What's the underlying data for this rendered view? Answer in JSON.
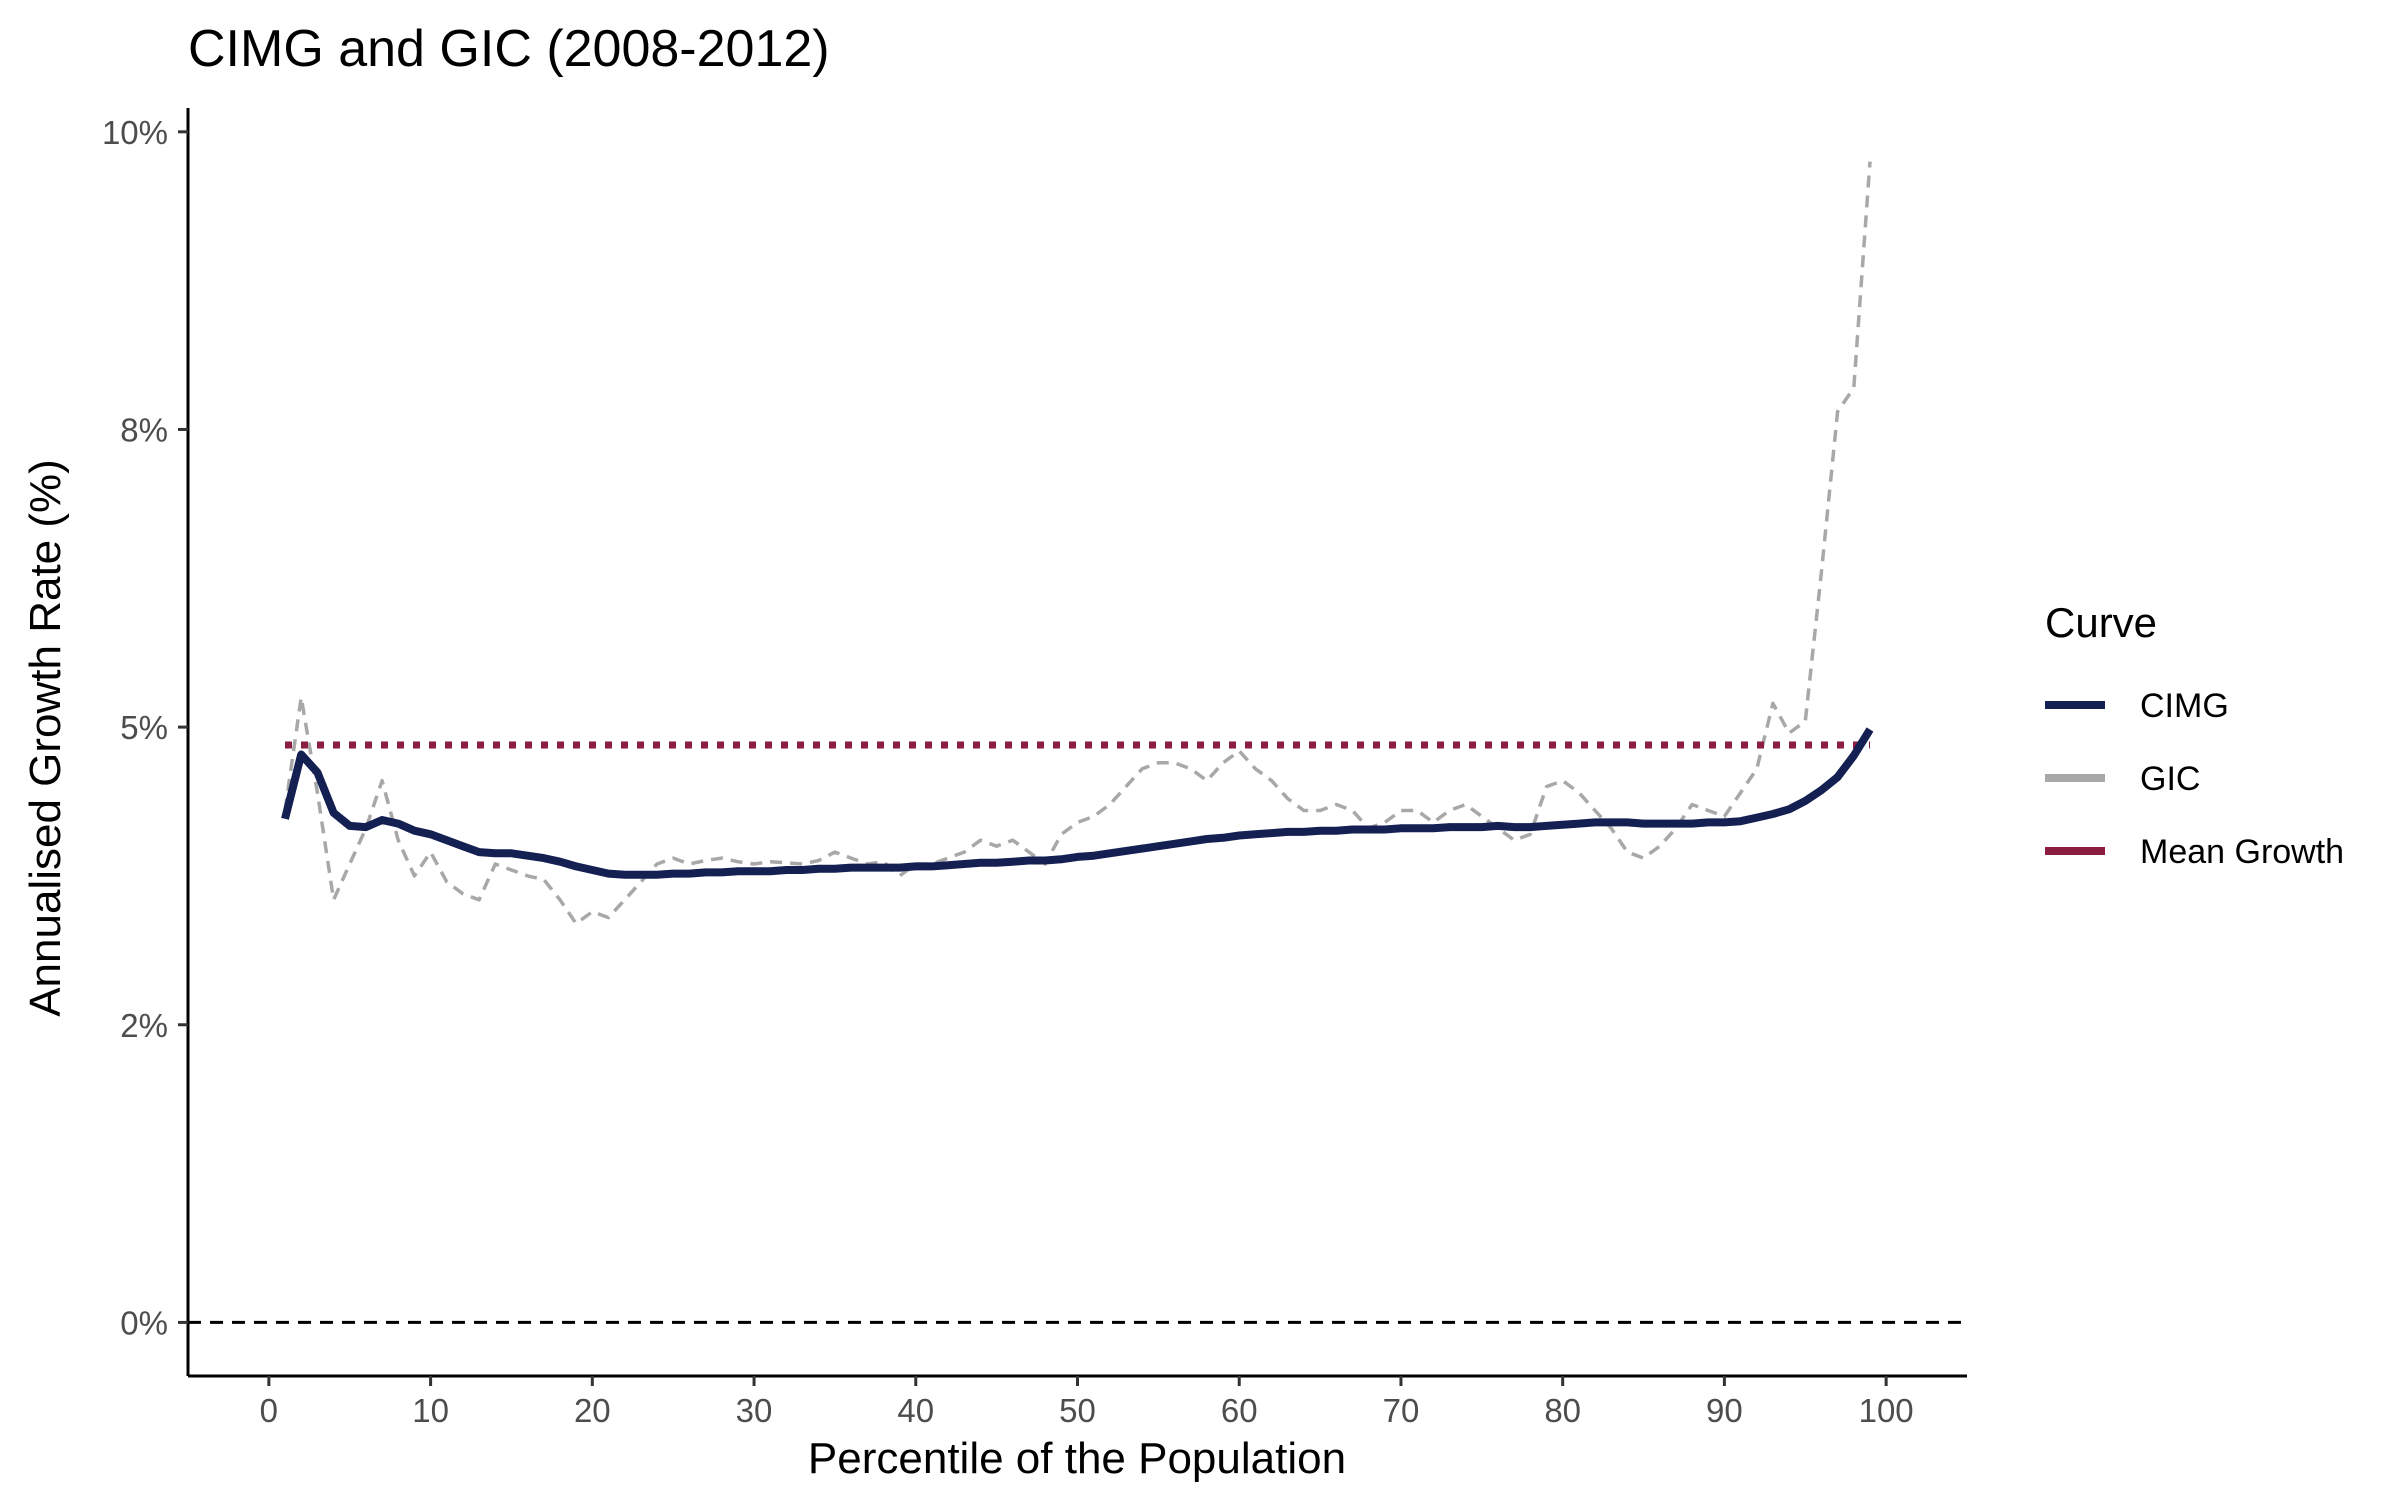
{
  "chart_data": {
    "type": "line",
    "title": "CIMG and GIC (2008-2012)",
    "xlabel": "Percentile of the Population",
    "ylabel": "Annualised Growth Rate (%)",
    "xlim": [
      -5,
      105
    ],
    "ylim": [
      -0.45,
      10.2
    ],
    "x_ticks": [
      0,
      10,
      20,
      30,
      40,
      50,
      60,
      70,
      80,
      90,
      100
    ],
    "x_tick_labels": [
      "0",
      "10",
      "20",
      "30",
      "40",
      "50",
      "60",
      "70",
      "80",
      "90",
      "100"
    ],
    "y_ticks": [
      0,
      2.5,
      5,
      7.5,
      10
    ],
    "y_tick_labels": [
      "0%",
      "2%",
      "5%",
      "8%",
      "10%"
    ],
    "grid": false,
    "legend": {
      "title": "Curve",
      "placement": "right",
      "entries": [
        "CIMG",
        "GIC",
        "Mean Growth"
      ]
    },
    "reference_line": {
      "y": 0,
      "style": "dashed",
      "color": "#000000"
    },
    "series": [
      {
        "name": "CIMG",
        "color": "#141f52",
        "style": "solid",
        "x": [
          1,
          2,
          3,
          4,
          5,
          6,
          7,
          8,
          9,
          10,
          11,
          12,
          13,
          14,
          15,
          16,
          17,
          18,
          19,
          20,
          21,
          22,
          23,
          24,
          25,
          26,
          27,
          28,
          29,
          30,
          31,
          32,
          33,
          34,
          35,
          36,
          37,
          38,
          39,
          40,
          41,
          42,
          43,
          44,
          45,
          46,
          47,
          48,
          49,
          50,
          51,
          52,
          53,
          54,
          55,
          56,
          57,
          58,
          59,
          60,
          61,
          62,
          63,
          64,
          65,
          66,
          67,
          68,
          69,
          70,
          71,
          72,
          73,
          74,
          75,
          76,
          77,
          78,
          79,
          80,
          81,
          82,
          83,
          84,
          85,
          86,
          87,
          88,
          89,
          90,
          91,
          92,
          93,
          94,
          95,
          96,
          97,
          98,
          99
        ],
        "y": [
          4.23,
          4.77,
          4.62,
          4.28,
          4.17,
          4.16,
          4.22,
          4.19,
          4.13,
          4.1,
          4.05,
          4.0,
          3.95,
          3.94,
          3.94,
          3.92,
          3.9,
          3.87,
          3.83,
          3.8,
          3.77,
          3.76,
          3.76,
          3.76,
          3.77,
          3.77,
          3.78,
          3.78,
          3.79,
          3.79,
          3.79,
          3.8,
          3.8,
          3.81,
          3.81,
          3.82,
          3.82,
          3.82,
          3.82,
          3.83,
          3.83,
          3.84,
          3.85,
          3.86,
          3.86,
          3.87,
          3.88,
          3.88,
          3.89,
          3.91,
          3.92,
          3.94,
          3.96,
          3.98,
          4.0,
          4.02,
          4.04,
          4.06,
          4.07,
          4.09,
          4.1,
          4.11,
          4.12,
          4.12,
          4.13,
          4.13,
          4.14,
          4.14,
          4.14,
          4.15,
          4.15,
          4.15,
          4.16,
          4.16,
          4.16,
          4.17,
          4.16,
          4.16,
          4.17,
          4.18,
          4.19,
          4.2,
          4.2,
          4.2,
          4.19,
          4.19,
          4.19,
          4.19,
          4.2,
          4.2,
          4.21,
          4.24,
          4.27,
          4.31,
          4.38,
          4.47,
          4.58,
          4.76,
          4.98
        ]
      },
      {
        "name": "GIC",
        "color": "#a8a8a8",
        "style": "dashed",
        "x": [
          1,
          2,
          3,
          4,
          5,
          6,
          7,
          8,
          9,
          10,
          11,
          12,
          13,
          14,
          15,
          16,
          17,
          18,
          19,
          20,
          21,
          22,
          23,
          24,
          25,
          26,
          27,
          28,
          29,
          30,
          31,
          32,
          33,
          34,
          35,
          36,
          37,
          38,
          39,
          40,
          41,
          42,
          43,
          44,
          45,
          46,
          47,
          48,
          49,
          50,
          51,
          52,
          53,
          54,
          55,
          56,
          57,
          58,
          59,
          60,
          61,
          62,
          63,
          64,
          65,
          66,
          67,
          68,
          69,
          70,
          71,
          72,
          73,
          74,
          75,
          76,
          77,
          78,
          79,
          80,
          81,
          82,
          83,
          84,
          85,
          86,
          87,
          88,
          89,
          90,
          91,
          92,
          93,
          94,
          95,
          96,
          97,
          98,
          99
        ],
        "y": [
          4.3,
          5.25,
          4.45,
          3.55,
          3.85,
          4.15,
          4.55,
          4.05,
          3.75,
          3.95,
          3.7,
          3.6,
          3.55,
          3.85,
          3.8,
          3.75,
          3.72,
          3.55,
          3.35,
          3.45,
          3.4,
          3.55,
          3.7,
          3.85,
          3.9,
          3.85,
          3.88,
          3.9,
          3.87,
          3.85,
          3.87,
          3.86,
          3.85,
          3.88,
          3.95,
          3.9,
          3.85,
          3.87,
          3.75,
          3.85,
          3.85,
          3.9,
          3.95,
          4.05,
          4.0,
          4.05,
          3.95,
          3.85,
          4.1,
          4.2,
          4.25,
          4.35,
          4.5,
          4.65,
          4.7,
          4.7,
          4.65,
          4.55,
          4.7,
          4.8,
          4.65,
          4.55,
          4.4,
          4.3,
          4.3,
          4.35,
          4.3,
          4.15,
          4.2,
          4.3,
          4.3,
          4.2,
          4.3,
          4.35,
          4.25,
          4.15,
          4.05,
          4.1,
          4.5,
          4.55,
          4.45,
          4.3,
          4.15,
          3.95,
          3.9,
          4.0,
          4.15,
          4.35,
          4.3,
          4.25,
          4.45,
          4.65,
          5.2,
          4.95,
          5.05,
          6.3,
          7.65,
          7.85,
          9.75
        ]
      },
      {
        "name": "Mean Growth",
        "color": "#8b1e3f",
        "style": "dotted",
        "x": [
          1,
          99
        ],
        "y": [
          4.85,
          4.85
        ]
      }
    ]
  }
}
